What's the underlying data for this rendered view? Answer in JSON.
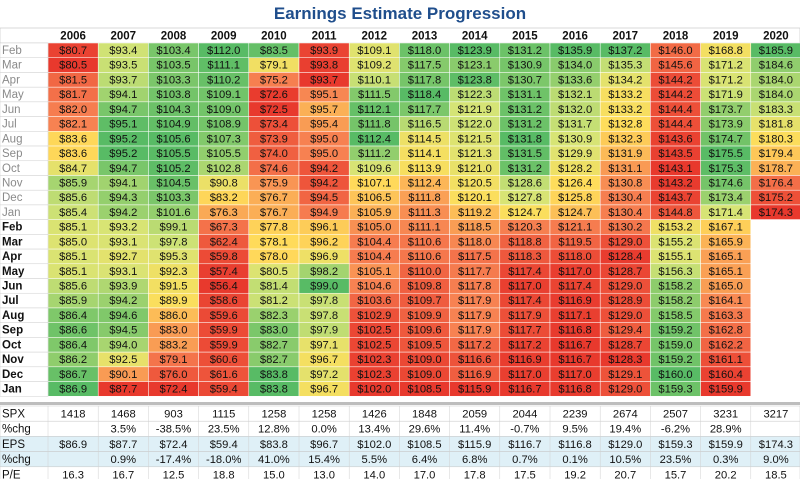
{
  "chart_data": {
    "type": "heatmap",
    "title": "Earnings Estimate Progression",
    "columns": [
      "2006",
      "2007",
      "2008",
      "2009",
      "2010",
      "2011",
      "2012",
      "2013",
      "2014",
      "2015",
      "2016",
      "2017",
      "2018",
      "2019",
      "2020"
    ],
    "row_labels": [
      "Feb",
      "Mar",
      "Apr",
      "May",
      "Jun",
      "Jul",
      "Aug",
      "Sep",
      "Oct",
      "Nov",
      "Dec",
      "Jan",
      "Feb",
      "Mar",
      "Apr",
      "May",
      "Jun",
      "Jul",
      "Aug",
      "Sep",
      "Oct",
      "Nov",
      "Dec",
      "Jan"
    ],
    "estimates": [
      [
        "$80.7",
        "$93.4",
        "$103.4",
        "$112.0",
        "$83.5",
        "$93.9",
        "$109.1",
        "$118.0",
        "$123.9",
        "$131.2",
        "$135.9",
        "$137.2",
        "$146.0",
        "$168.8",
        "$185.9"
      ],
      [
        "$80.5",
        "$93.5",
        "$103.5",
        "$111.1",
        "$79.1",
        "$93.8",
        "$109.2",
        "$117.5",
        "$123.1",
        "$130.9",
        "$134.0",
        "$135.3",
        "$145.6",
        "$171.2",
        "$184.6"
      ],
      [
        "$81.5",
        "$93.7",
        "$103.3",
        "$110.2",
        "$75.2",
        "$93.7",
        "$110.1",
        "$117.8",
        "$123.8",
        "$130.7",
        "$133.6",
        "$134.2",
        "$144.2",
        "$171.2",
        "$184.0"
      ],
      [
        "$81.7",
        "$94.1",
        "$103.8",
        "$109.1",
        "$72.6",
        "$95.1",
        "$111.5",
        "$118.4",
        "$122.3",
        "$131.1",
        "$132.1",
        "$133.2",
        "$144.2",
        "$171.9",
        "$184.0"
      ],
      [
        "$82.0",
        "$94.7",
        "$104.3",
        "$109.0",
        "$72.5",
        "$95.7",
        "$112.1",
        "$117.7",
        "$121.9",
        "$131.2",
        "$132.0",
        "$133.2",
        "$144.4",
        "$173.7",
        "$183.3"
      ],
      [
        "$82.1",
        "$95.1",
        "$104.9",
        "$108.9",
        "$73.4",
        "$95.4",
        "$111.8",
        "$116.5",
        "$122.0",
        "$131.2",
        "$131.7",
        "$132.8",
        "$144.4",
        "$173.9",
        "$181.8"
      ],
      [
        "$83.6",
        "$95.2",
        "$105.6",
        "$107.3",
        "$73.9",
        "$95.0",
        "$112.4",
        "$114.5",
        "$121.5",
        "$131.8",
        "$130.9",
        "$132.3",
        "$143.6",
        "$174.7",
        "$180.3"
      ],
      [
        "$83.6",
        "$95.2",
        "$105.5",
        "$105.5",
        "$74.0",
        "$95.0",
        "$111.2",
        "$114.1",
        "$121.3",
        "$131.5",
        "$129.9",
        "$131.9",
        "$143.5",
        "$175.5",
        "$179.4"
      ],
      [
        "$84.7",
        "$94.7",
        "$105.2",
        "$102.8",
        "$74.6",
        "$94.2",
        "$109.6",
        "$113.9",
        "$121.0",
        "$131.2",
        "$128.2",
        "$131.1",
        "$143.1",
        "$175.3",
        "$178.7"
      ],
      [
        "$85.9",
        "$94.1",
        "$104.5",
        "$90.8",
        "$75.9",
        "$94.2",
        "$107.1",
        "$112.4",
        "$120.5",
        "$128.6",
        "$126.4",
        "$130.8",
        "$143.2",
        "$174.6",
        "$176.4"
      ],
      [
        "$85.6",
        "$94.3",
        "$103.3",
        "$83.2",
        "$76.7",
        "$94.5",
        "$106.5",
        "$111.8",
        "$120.1",
        "$127.8",
        "$125.8",
        "$130.4",
        "$143.7",
        "$173.4",
        "$175.2"
      ],
      [
        "$85.4",
        "$94.2",
        "$101.6",
        "$76.3",
        "$76.7",
        "$94.9",
        "$105.9",
        "$111.3",
        "$119.2",
        "$124.7",
        "$124.7",
        "$130.4",
        "$144.8",
        "$171.4",
        "$174.3"
      ],
      [
        "$85.1",
        "$93.2",
        "$99.1",
        "$67.3",
        "$77.8",
        "$96.1",
        "$105.0",
        "$111.1",
        "$118.5",
        "$120.3",
        "$121.1",
        "$130.2",
        "$153.2",
        "$167.1",
        ""
      ],
      [
        "$85.0",
        "$93.1",
        "$97.8",
        "$62.4",
        "$78.1",
        "$96.2",
        "$104.4",
        "$110.6",
        "$118.0",
        "$118.8",
        "$119.5",
        "$129.0",
        "$155.2",
        "$165.9",
        ""
      ],
      [
        "$85.1",
        "$92.7",
        "$95.3",
        "$59.8",
        "$78.0",
        "$96.9",
        "$104.4",
        "$110.6",
        "$117.5",
        "$118.3",
        "$118.0",
        "$128.4",
        "$155.1",
        "$165.1",
        ""
      ],
      [
        "$85.1",
        "$93.1",
        "$92.3",
        "$57.4",
        "$80.5",
        "$98.2",
        "$105.1",
        "$110.0",
        "$117.7",
        "$117.4",
        "$117.0",
        "$128.7",
        "$156.3",
        "$165.1",
        ""
      ],
      [
        "$85.6",
        "$93.9",
        "$91.5",
        "$56.4",
        "$81.4",
        "$99.0",
        "$104.6",
        "$109.8",
        "$117.8",
        "$117.0",
        "$117.4",
        "$129.0",
        "$158.2",
        "$165.0",
        ""
      ],
      [
        "$85.9",
        "$94.2",
        "$89.9",
        "$58.6",
        "$81.2",
        "$97.8",
        "$103.6",
        "$109.7",
        "$117.9",
        "$117.4",
        "$116.9",
        "$128.9",
        "$158.2",
        "$164.1",
        ""
      ],
      [
        "$86.4",
        "$94.6",
        "$86.0",
        "$59.6",
        "$82.3",
        "$97.8",
        "$102.9",
        "$109.9",
        "$117.9",
        "$117.9",
        "$117.1",
        "$129.0",
        "$158.5",
        "$163.3",
        ""
      ],
      [
        "$86.6",
        "$94.5",
        "$83.0",
        "$59.9",
        "$83.0",
        "$97.9",
        "$102.5",
        "$109.6",
        "$117.9",
        "$117.7",
        "$116.8",
        "$129.4",
        "$159.2",
        "$162.8",
        ""
      ],
      [
        "$86.4",
        "$94.0",
        "$83.2",
        "$59.9",
        "$82.7",
        "$97.1",
        "$102.5",
        "$109.5",
        "$117.2",
        "$117.2",
        "$116.7",
        "$128.7",
        "$159.0",
        "$162.2",
        ""
      ],
      [
        "$86.2",
        "$92.5",
        "$79.1",
        "$60.6",
        "$82.7",
        "$96.7",
        "$102.3",
        "$109.0",
        "$116.6",
        "$116.9",
        "$116.7",
        "$128.3",
        "$159.2",
        "$161.1",
        ""
      ],
      [
        "$86.7",
        "$90.1",
        "$76.0",
        "$61.6",
        "$83.8",
        "$97.2",
        "$102.3",
        "$109.0",
        "$116.9",
        "$117.0",
        "$117.0",
        "$129.1",
        "$160.0",
        "$160.4",
        ""
      ],
      [
        "$86.9",
        "$87.7",
        "$72.4",
        "$59.4",
        "$83.8",
        "$96.7",
        "$102.0",
        "$108.5",
        "$115.9",
        "$116.7",
        "$116.8",
        "$129.0",
        "$159.3",
        "$159.9",
        ""
      ]
    ],
    "estimate_values": [
      [
        80.7,
        93.4,
        103.4,
        112.0,
        83.5,
        93.9,
        109.1,
        118.0,
        123.9,
        131.2,
        135.9,
        137.2,
        146.0,
        168.8,
        185.9
      ],
      [
        80.5,
        93.5,
        103.5,
        111.1,
        79.1,
        93.8,
        109.2,
        117.5,
        123.1,
        130.9,
        134.0,
        135.3,
        145.6,
        171.2,
        184.6
      ],
      [
        81.5,
        93.7,
        103.3,
        110.2,
        75.2,
        93.7,
        110.1,
        117.8,
        123.8,
        130.7,
        133.6,
        134.2,
        144.2,
        171.2,
        184.0
      ],
      [
        81.7,
        94.1,
        103.8,
        109.1,
        72.6,
        95.1,
        111.5,
        118.4,
        122.3,
        131.1,
        132.1,
        133.2,
        144.2,
        171.9,
        184.0
      ],
      [
        82.0,
        94.7,
        104.3,
        109.0,
        72.5,
        95.7,
        112.1,
        117.7,
        121.9,
        131.2,
        132.0,
        133.2,
        144.4,
        173.7,
        183.3
      ],
      [
        82.1,
        95.1,
        104.9,
        108.9,
        73.4,
        95.4,
        111.8,
        116.5,
        122.0,
        131.2,
        131.7,
        132.8,
        144.4,
        173.9,
        181.8
      ],
      [
        83.6,
        95.2,
        105.6,
        107.3,
        73.9,
        95.0,
        112.4,
        114.5,
        121.5,
        131.8,
        130.9,
        132.3,
        143.6,
        174.7,
        180.3
      ],
      [
        83.6,
        95.2,
        105.5,
        105.5,
        74.0,
        95.0,
        111.2,
        114.1,
        121.3,
        131.5,
        129.9,
        131.9,
        143.5,
        175.5,
        179.4
      ],
      [
        84.7,
        94.7,
        105.2,
        102.8,
        74.6,
        94.2,
        109.6,
        113.9,
        121.0,
        131.2,
        128.2,
        131.1,
        143.1,
        175.3,
        178.7
      ],
      [
        85.9,
        94.1,
        104.5,
        90.8,
        75.9,
        94.2,
        107.1,
        112.4,
        120.5,
        128.6,
        126.4,
        130.8,
        143.2,
        174.6,
        176.4
      ],
      [
        85.6,
        94.3,
        103.3,
        83.2,
        76.7,
        94.5,
        106.5,
        111.8,
        120.1,
        127.8,
        125.8,
        130.4,
        143.7,
        173.4,
        175.2
      ],
      [
        85.4,
        94.2,
        101.6,
        76.3,
        76.7,
        94.9,
        105.9,
        111.3,
        119.2,
        124.7,
        124.7,
        130.4,
        144.8,
        171.4,
        174.3
      ],
      [
        85.1,
        93.2,
        99.1,
        67.3,
        77.8,
        96.1,
        105.0,
        111.1,
        118.5,
        120.3,
        121.1,
        130.2,
        153.2,
        167.1,
        null
      ],
      [
        85.0,
        93.1,
        97.8,
        62.4,
        78.1,
        96.2,
        104.4,
        110.6,
        118.0,
        118.8,
        119.5,
        129.0,
        155.2,
        165.9,
        null
      ],
      [
        85.1,
        92.7,
        95.3,
        59.8,
        78.0,
        96.9,
        104.4,
        110.6,
        117.5,
        118.3,
        118.0,
        128.4,
        155.1,
        165.1,
        null
      ],
      [
        85.1,
        93.1,
        92.3,
        57.4,
        80.5,
        98.2,
        105.1,
        110.0,
        117.7,
        117.4,
        117.0,
        128.7,
        156.3,
        165.1,
        null
      ],
      [
        85.6,
        93.9,
        91.5,
        56.4,
        81.4,
        99.0,
        104.6,
        109.8,
        117.8,
        117.0,
        117.4,
        129.0,
        158.2,
        165.0,
        null
      ],
      [
        85.9,
        94.2,
        89.9,
        58.6,
        81.2,
        97.8,
        103.6,
        109.7,
        117.9,
        117.4,
        116.9,
        128.9,
        158.2,
        164.1,
        null
      ],
      [
        86.4,
        94.6,
        86.0,
        59.6,
        82.3,
        97.8,
        102.9,
        109.9,
        117.9,
        117.9,
        117.1,
        129.0,
        158.5,
        163.3,
        null
      ],
      [
        86.6,
        94.5,
        83.0,
        59.9,
        83.0,
        97.9,
        102.5,
        109.6,
        117.9,
        117.7,
        116.8,
        129.4,
        159.2,
        162.8,
        null
      ],
      [
        86.4,
        94.0,
        83.2,
        59.9,
        82.7,
        97.1,
        102.5,
        109.5,
        117.2,
        117.2,
        116.7,
        128.7,
        159.0,
        162.2,
        null
      ],
      [
        86.2,
        92.5,
        79.1,
        60.6,
        82.7,
        96.7,
        102.3,
        109.0,
        116.6,
        116.9,
        116.7,
        128.3,
        159.2,
        161.1,
        null
      ],
      [
        86.7,
        90.1,
        76.0,
        61.6,
        83.8,
        97.2,
        102.3,
        109.0,
        116.9,
        117.0,
        117.0,
        129.1,
        160.0,
        160.4,
        null
      ],
      [
        86.9,
        87.7,
        72.4,
        59.4,
        83.8,
        96.7,
        102.0,
        108.5,
        115.9,
        116.7,
        116.8,
        129.0,
        159.3,
        159.9,
        null
      ]
    ],
    "summary_rows": [
      {
        "label": "SPX",
        "values": [
          "1418",
          "1468",
          "903",
          "1115",
          "1258",
          "1258",
          "1426",
          "1848",
          "2059",
          "2044",
          "2239",
          "2674",
          "2507",
          "3231",
          "3217"
        ]
      },
      {
        "label": "%chg",
        "values": [
          "",
          "3.5%",
          "-38.5%",
          "23.5%",
          "12.8%",
          "0.0%",
          "13.4%",
          "29.6%",
          "11.4%",
          "-0.7%",
          "9.5%",
          "19.4%",
          "-6.2%",
          "28.9%",
          ""
        ]
      },
      {
        "label": "EPS",
        "values": [
          "$86.9",
          "$87.7",
          "$72.4",
          "$59.4",
          "$83.8",
          "$96.7",
          "$102.0",
          "$108.5",
          "$115.9",
          "$116.7",
          "$116.8",
          "$129.0",
          "$159.3",
          "$159.9",
          "$174.3"
        ]
      },
      {
        "label": "%chg",
        "values": [
          "",
          "0.9%",
          "-17.4%",
          "-18.0%",
          "41.0%",
          "15.4%",
          "5.5%",
          "6.4%",
          "6.8%",
          "0.7%",
          "0.1%",
          "10.5%",
          "23.5%",
          "0.3%",
          "9.0%"
        ]
      },
      {
        "label": "P/E",
        "values": [
          "16.3",
          "16.7",
          "12.5",
          "18.8",
          "15.0",
          "13.0",
          "14.0",
          "17.0",
          "17.8",
          "17.5",
          "19.2",
          "20.7",
          "15.7",
          "20.2",
          "18.5"
        ]
      }
    ]
  }
}
